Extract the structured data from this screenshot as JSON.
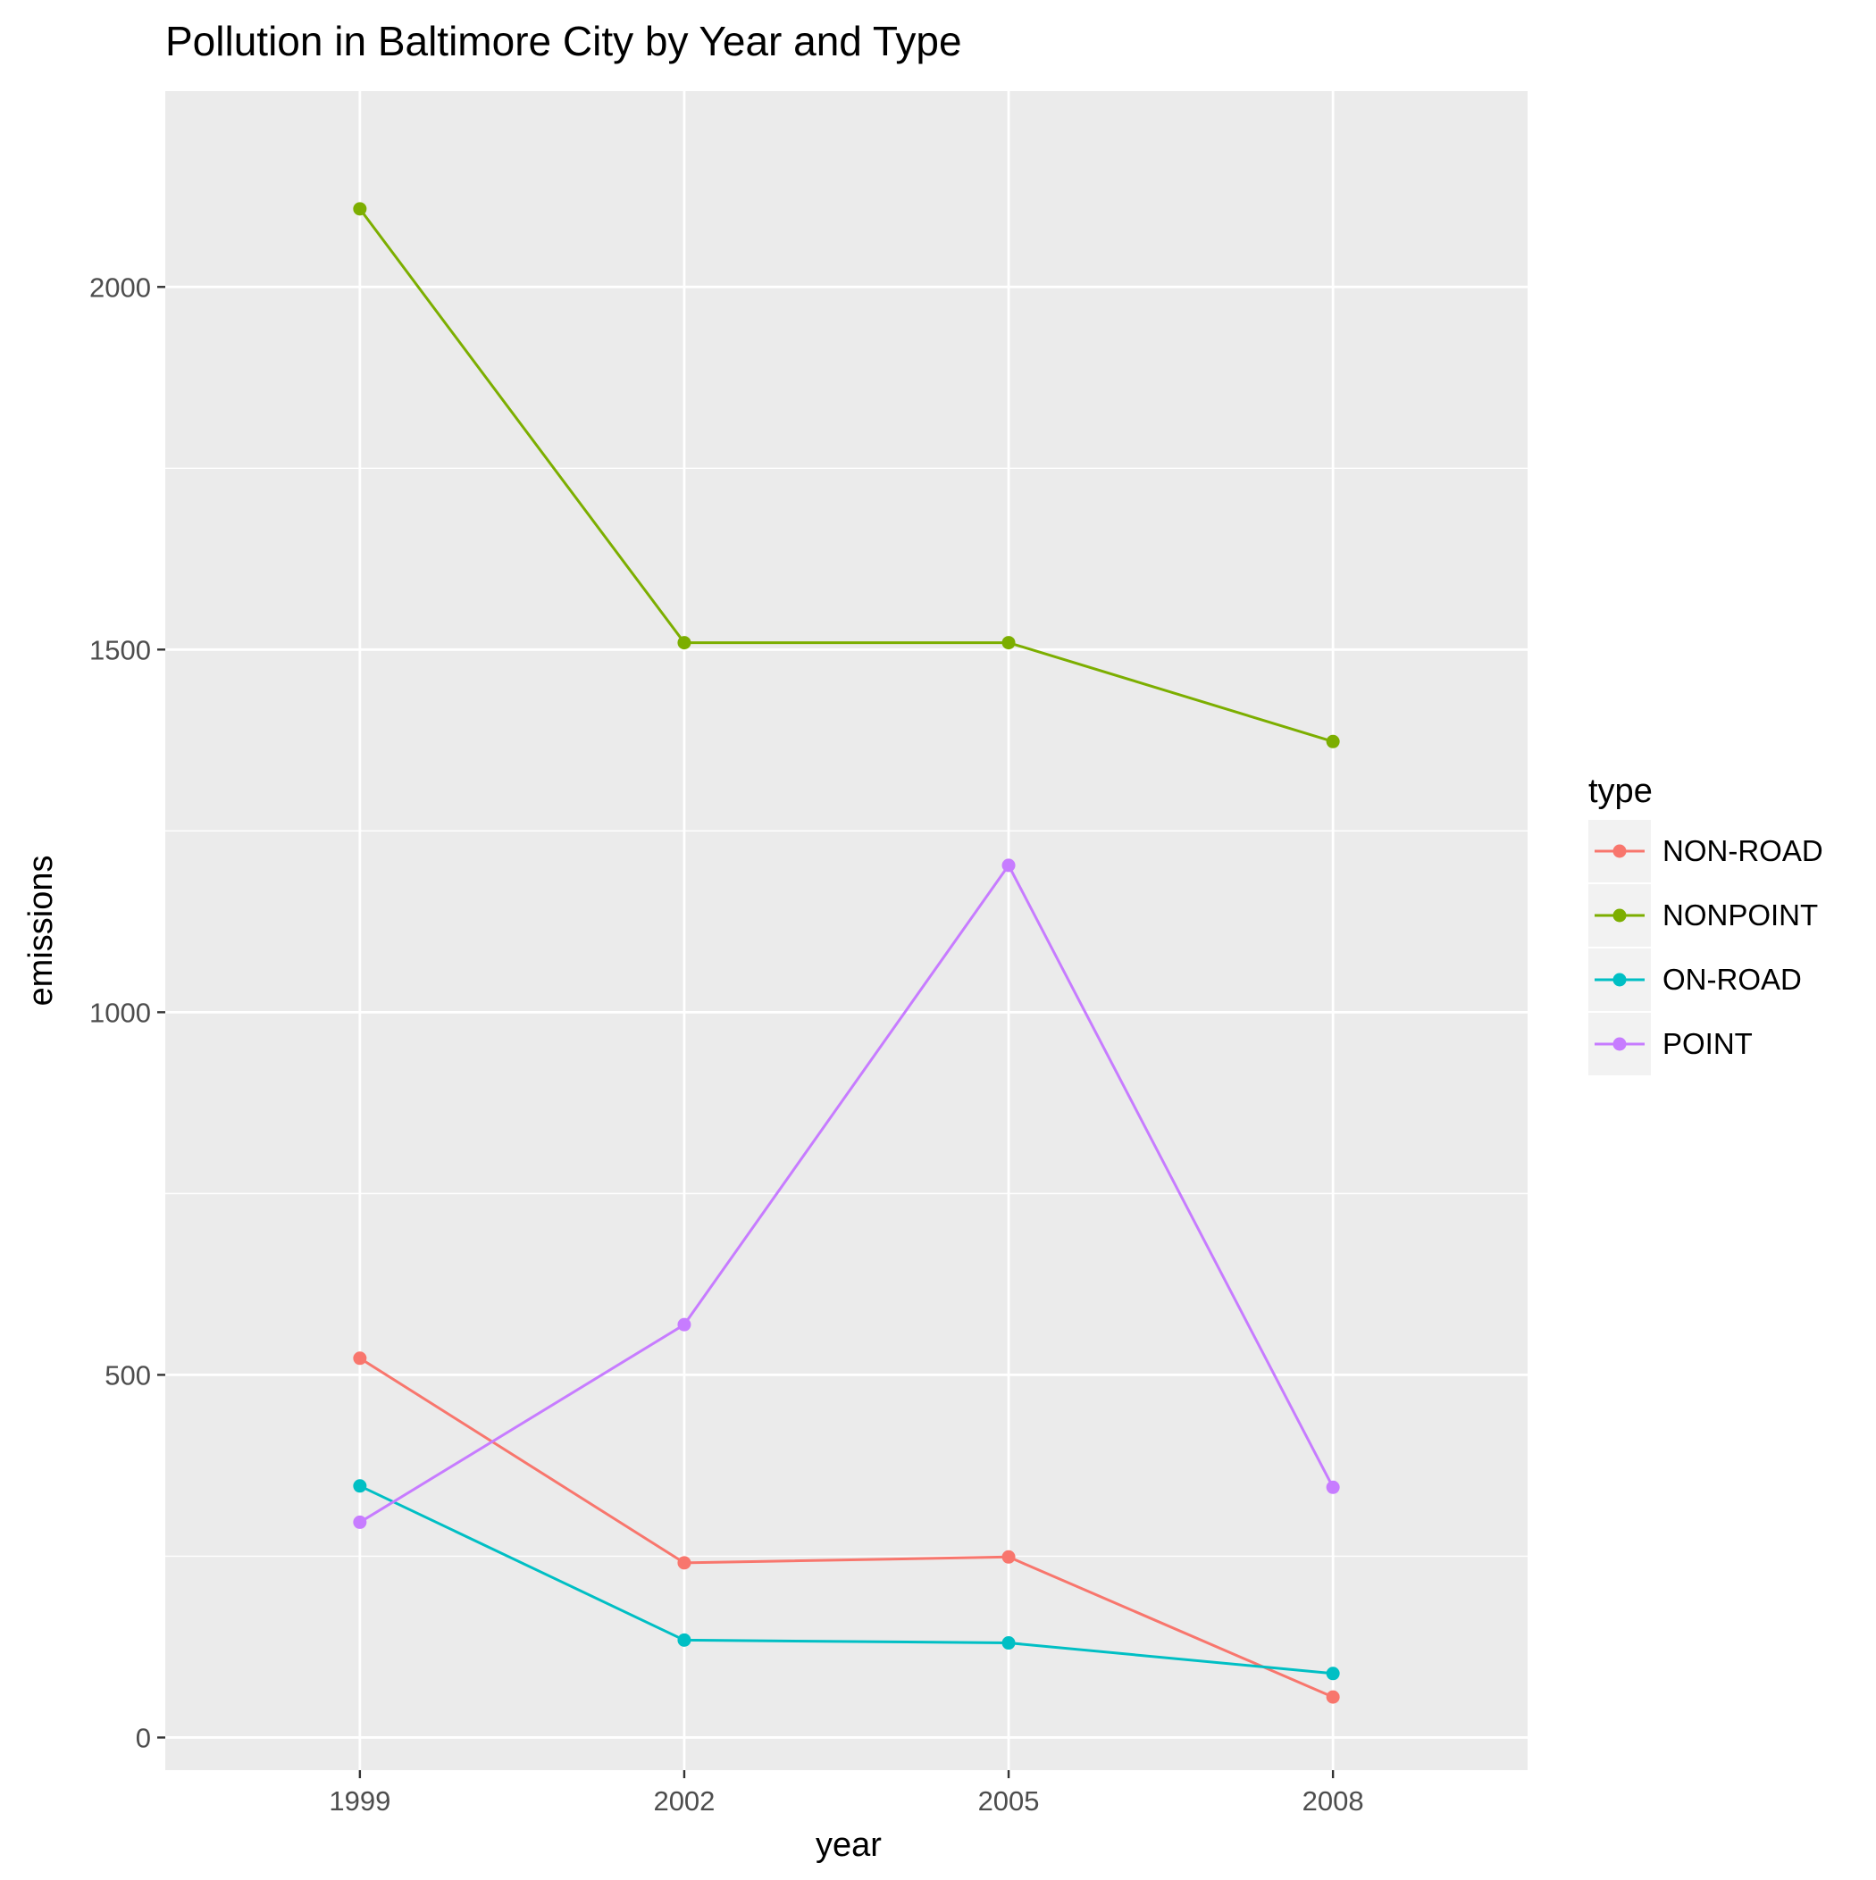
{
  "chart_data": {
    "type": "line",
    "title": "Pollution in Baltimore City by Year and Type",
    "xlabel": "year",
    "ylabel": "emissions",
    "x": [
      1999,
      2002,
      2005,
      2008
    ],
    "x_ticks": [
      "1999",
      "2002",
      "2005",
      "2008"
    ],
    "xlim": [
      1997.2,
      2009.8
    ],
    "y_ticks": [
      0,
      500,
      1000,
      1500,
      2000
    ],
    "ylim": [
      -45,
      2270
    ],
    "grid": true,
    "legend": {
      "title": "type",
      "placement": "right"
    },
    "series": [
      {
        "name": "NON-ROAD",
        "color": "#F8766D",
        "values": [
          522.94,
          240.85,
          248.93,
          55.82
        ]
      },
      {
        "name": "NONPOINT",
        "color": "#7CAE00",
        "values": [
          2107.63,
          1509.5,
          1509.5,
          1373.21
        ]
      },
      {
        "name": "ON-ROAD",
        "color": "#00BFC4",
        "values": [
          346.82,
          134.31,
          130.43,
          88.28
        ]
      },
      {
        "name": "POINT",
        "color": "#C77CFF",
        "values": [
          296.8,
          569.26,
          1202.49,
          344.98
        ]
      }
    ]
  }
}
